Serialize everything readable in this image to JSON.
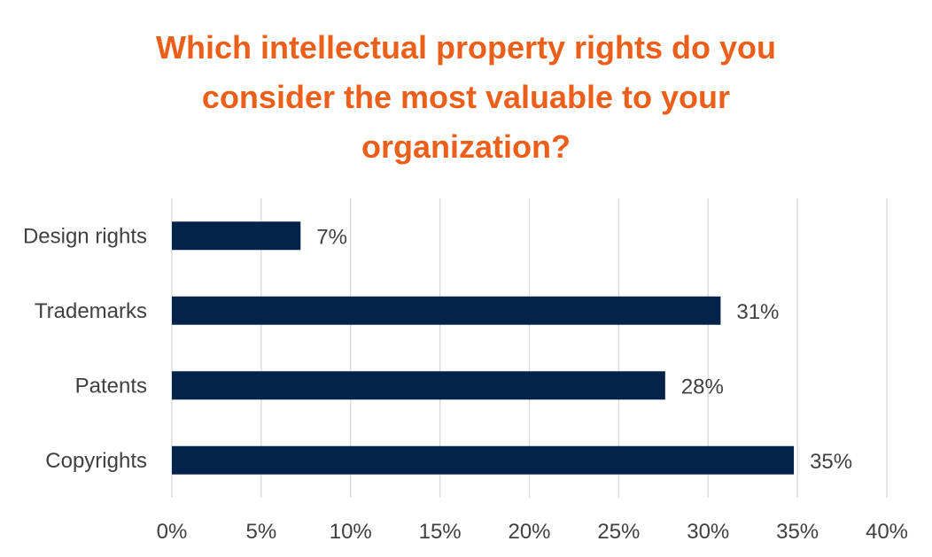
{
  "chart_data": {
    "type": "bar",
    "orientation": "horizontal",
    "title_lines": [
      "Which intellectual property rights do you",
      "consider the most valuable to your",
      "organization?"
    ],
    "categories": [
      "Design rights",
      "Trademarks",
      "Patents",
      "Copyrights"
    ],
    "values": [
      7.2,
      30.7,
      27.6,
      34.8
    ],
    "data_labels": [
      "7%",
      "31%",
      "28%",
      "35%"
    ],
    "x_ticks": [
      "0%",
      "5%",
      "10%",
      "15%",
      "20%",
      "25%",
      "30%",
      "35%",
      "40%"
    ],
    "xlim": [
      0,
      40
    ],
    "xlabel": "",
    "ylabel": "",
    "grid": "vertical",
    "legend": "none",
    "colors": {
      "bar": "#03234b",
      "title": "#ec5f1a",
      "grid": "#d9d9d9",
      "text": "#404040"
    }
  }
}
